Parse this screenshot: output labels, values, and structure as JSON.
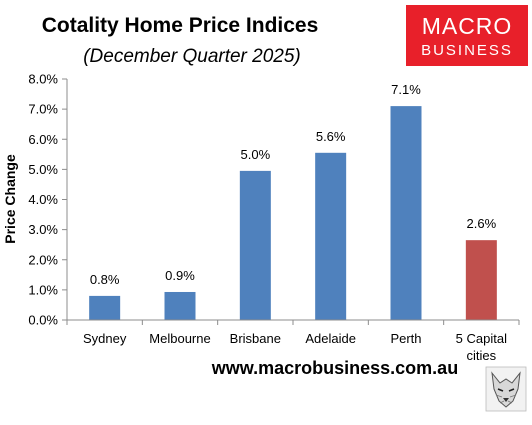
{
  "header": {
    "title": "Cotality Home Price Indices",
    "subtitle": "(December Quarter 2025)"
  },
  "logo": {
    "line1": "MACRO",
    "line2": "BUSINESS",
    "background": "#e8202a"
  },
  "footer": {
    "url": "www.macrobusiness.com.au",
    "emblem_icon": "wolf-icon"
  },
  "colors": {
    "bar_primary": "#4f81bd",
    "bar_highlight": "#c0504d",
    "axis": "#8c8c8c"
  },
  "chart_data": {
    "type": "bar",
    "title": "Cotality Home Price Indices",
    "subtitle": "(December Quarter 2025)",
    "xlabel": "",
    "ylabel": "Price Change",
    "categories": [
      "Sydney",
      "Melbourne",
      "Brisbane",
      "Adelaide",
      "Perth",
      "5 Capital cities"
    ],
    "category_lines": [
      [
        "Sydney"
      ],
      [
        "Melbourne"
      ],
      [
        "Brisbane"
      ],
      [
        "Adelaide"
      ],
      [
        "Perth"
      ],
      [
        "5 Capital",
        "cities"
      ]
    ],
    "values": [
      0.8,
      0.9,
      5.0,
      5.6,
      7.1,
      2.6
    ],
    "bar_heights": [
      0.8,
      0.93,
      4.95,
      5.55,
      7.1,
      2.65
    ],
    "data_labels": [
      "0.8%",
      "0.9%",
      "5.0%",
      "5.6%",
      "7.1%",
      "2.6%"
    ],
    "highlight_index": 5,
    "ylim": [
      0,
      8
    ],
    "y_ticks": [
      0,
      1,
      2,
      3,
      4,
      5,
      6,
      7,
      8
    ],
    "y_tick_labels": [
      "0.0%",
      "1.0%",
      "2.0%",
      "3.0%",
      "4.0%",
      "5.0%",
      "6.0%",
      "7.0%",
      "8.0%"
    ],
    "grid": false,
    "legend": "none"
  }
}
